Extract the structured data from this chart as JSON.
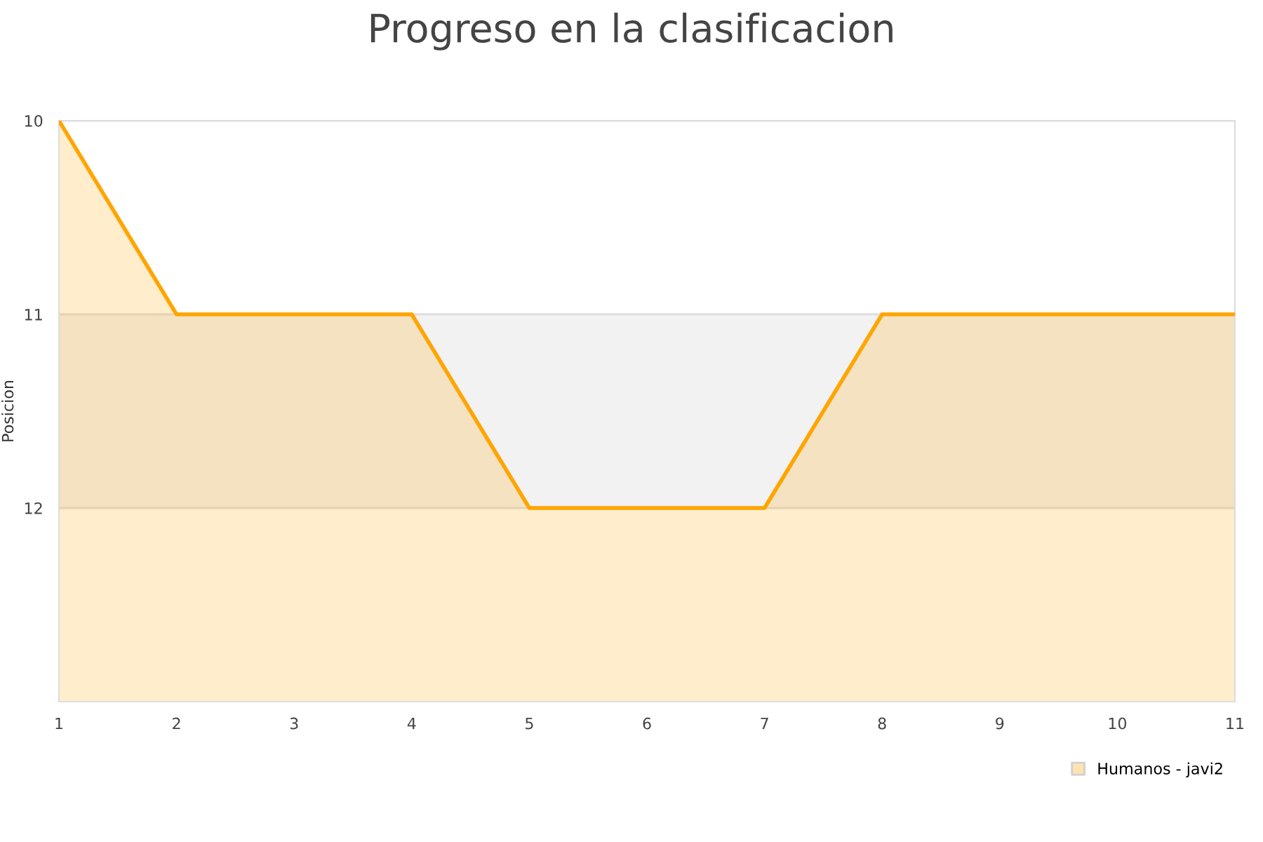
{
  "chart_data": {
    "type": "area",
    "title": "Progreso en la clasificacion",
    "ylabel": "Posicion",
    "x": [
      1,
      2,
      3,
      4,
      5,
      6,
      7,
      8,
      9,
      10,
      11
    ],
    "series": [
      {
        "name": "Humanos - javi2",
        "color": "#ffa500",
        "values": [
          10,
          11,
          11,
          11,
          12,
          12,
          12,
          11,
          11,
          11,
          11
        ]
      }
    ],
    "xlim": [
      1,
      11
    ],
    "xticks": [
      1,
      2,
      3,
      4,
      5,
      6,
      7,
      8,
      9,
      10,
      11
    ],
    "ylim": [
      13,
      10
    ],
    "yticks": [
      10,
      11,
      12
    ],
    "bands": [
      {
        "axis": "y",
        "from": 11,
        "to": 12,
        "color": "#f2f2f2"
      }
    ],
    "grid": "y",
    "legend": "bottom right"
  }
}
